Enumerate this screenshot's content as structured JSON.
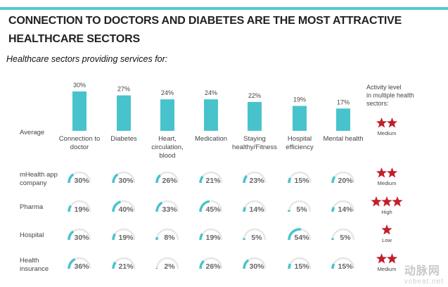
{
  "title": "Connection to doctors and Diabetes are the most attractive healthcare sectors",
  "subtitle": "Healthcare sectors providing services for:",
  "activity_header": "Activity level in multiple health sectors:",
  "watermark": "动脉网",
  "watermark_url": "vcbeat.net",
  "colors": {
    "accent": "#48c3cc",
    "star": "#c0202a",
    "topline": "#59c7cf"
  },
  "chart_data": {
    "type": "bar",
    "categories": [
      [
        "Connection to",
        "doctor"
      ],
      [
        "Diabetes"
      ],
      [
        "Heart,",
        "circulation,",
        "blood"
      ],
      [
        "Medication"
      ],
      [
        "Staying",
        "healthy/Fitness"
      ],
      [
        "Hospital",
        "efficiency"
      ],
      [
        "Mental health"
      ]
    ],
    "average_label": "Average",
    "average_values": [
      30,
      27,
      24,
      24,
      22,
      19,
      17
    ],
    "unit": "%",
    "rows": [
      {
        "label": [
          "mHealth app",
          "company"
        ],
        "values": [
          30,
          30,
          26,
          21,
          23,
          15,
          20
        ],
        "stars": 2,
        "activity": "Medium"
      },
      {
        "label": [
          "Pharma"
        ],
        "values": [
          19,
          40,
          33,
          45,
          14,
          5,
          14
        ],
        "stars": 3,
        "activity": "High"
      },
      {
        "label": [
          "Hospital"
        ],
        "values": [
          30,
          19,
          8,
          19,
          5,
          54,
          5
        ],
        "stars": 1,
        "activity": "Low"
      },
      {
        "label": [
          "Health",
          "insurance"
        ],
        "values": [
          36,
          21,
          2,
          26,
          30,
          15,
          15
        ],
        "stars": 2,
        "activity": "Medium"
      }
    ],
    "avg_activity": {
      "stars": 2,
      "activity": "Medium"
    }
  }
}
